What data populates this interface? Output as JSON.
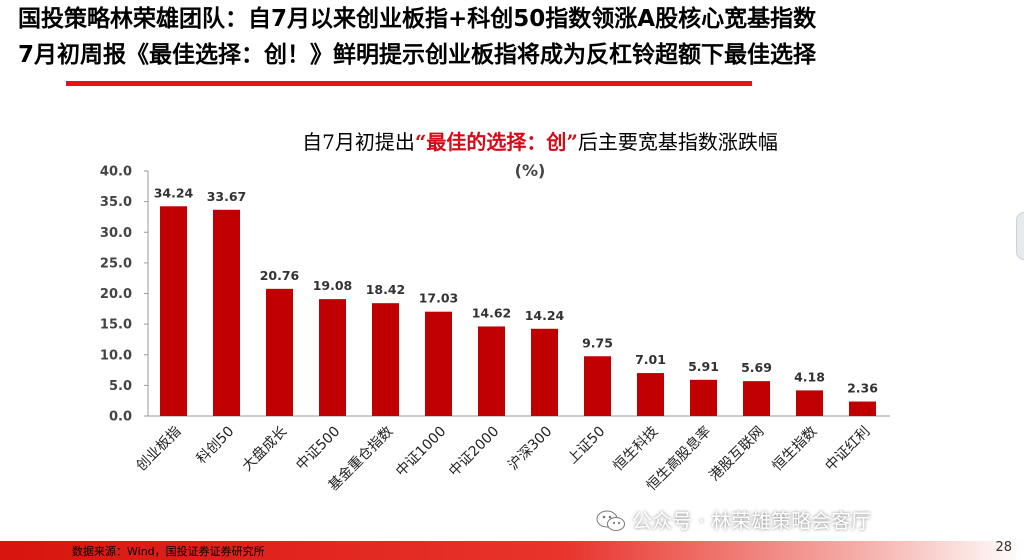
{
  "headline": {
    "line1": "国投策略林荣雄团队：自7月以来创业板指+科创50指数领涨A股核心宽基指数",
    "line2": "7月初周报《最佳选择：创！》鲜明提示创业板指将成为反杠铃超额下最佳选择"
  },
  "chart_title": {
    "before": "自7月初提出",
    "quoted": "“最佳的选择：创”",
    "after": "后主要宽基指数涨跌幅"
  },
  "unit": "(%)",
  "chart_data": {
    "type": "bar",
    "title": "自7月初提出“最佳的选择：创”后主要宽基指数涨跌幅",
    "ylabel": "(%)",
    "categories": [
      "创业板指",
      "科创50",
      "大盘成长",
      "中证500",
      "基金重仓指数",
      "中证1000",
      "中证2000",
      "沪深300",
      "上证50",
      "恒生科技",
      "恒生高股息率",
      "港股互联网",
      "恒生指数",
      "中证红利"
    ],
    "values": [
      34.24,
      33.67,
      20.76,
      19.08,
      18.42,
      17.03,
      14.62,
      14.24,
      9.75,
      7.01,
      5.91,
      5.69,
      4.18,
      2.36
    ],
    "ylim": [
      0,
      40
    ],
    "yticks": [
      "0.0",
      "5.0",
      "10.0",
      "15.0",
      "20.0",
      "25.0",
      "30.0",
      "35.0",
      "40.0"
    ],
    "grid": false,
    "bar_color": "#c00000",
    "data_labels": true
  },
  "footer": {
    "source": "数据来源：Wind，国投证券证券研究所",
    "page": "28"
  },
  "watermark": {
    "text": "公众号 · 林荣雄策略会客厅",
    "icon": "wechat-icon"
  },
  "colors": {
    "accent_red": "#e8150f",
    "bar_red": "#c00000",
    "quote_red": "#d40a17"
  }
}
